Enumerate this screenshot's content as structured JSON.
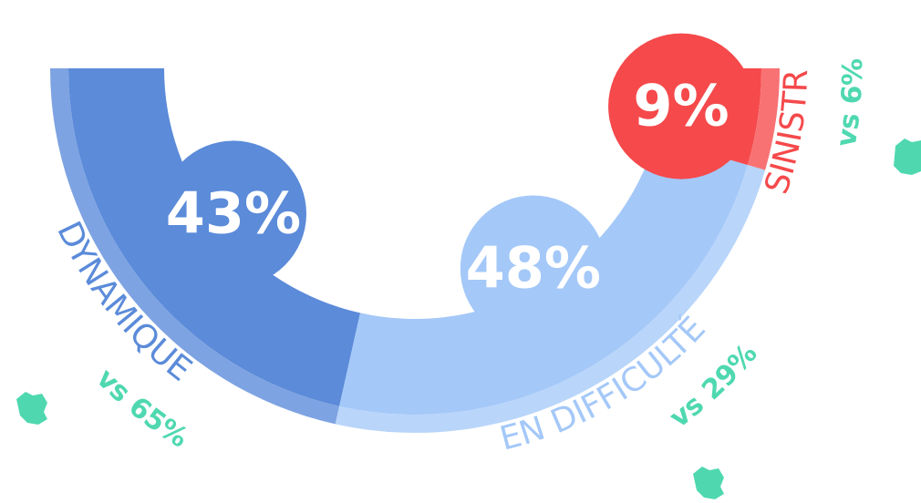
{
  "chart_data": {
    "type": "donut",
    "categories": [
      "DYNAMIQUE",
      "EN DIFFICULTÉ",
      "SINISTRÉ"
    ],
    "values": [
      43,
      48,
      9
    ],
    "value_labels": [
      "43%",
      "48%",
      "9%"
    ],
    "colors": [
      "#5b8bd9",
      "#a4c8f8",
      "#f5494b"
    ],
    "rim_colors": [
      "#7ea3e2",
      "#b9d5fa",
      "#f87274"
    ],
    "annotations": [
      "vs 65%",
      "vs 29%",
      "vs 6%"
    ],
    "annotation_color": "#4fd8b0"
  }
}
